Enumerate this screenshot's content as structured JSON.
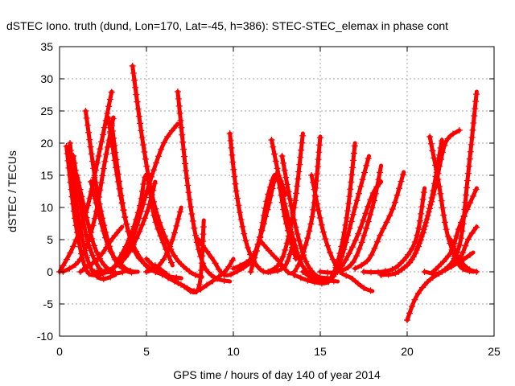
{
  "chart_data": {
    "type": "scatter",
    "title": "dSTEC Iono. truth (dund, Lon=170, Lat=-45, h=386): STEC-STEC_elemax in phase cont",
    "xlabel": "GPS time / hours of day 140 of year 2014",
    "ylabel": "dSTEC  / TECUs",
    "xlim": [
      0,
      25
    ],
    "ylim": [
      -10,
      35
    ],
    "xticks": [
      0,
      5,
      10,
      15,
      20,
      25
    ],
    "yticks": [
      -10,
      -5,
      0,
      5,
      10,
      15,
      20,
      25,
      30,
      35
    ],
    "grid": true,
    "marker": "plus",
    "color": "#ff0000",
    "series": [
      {
        "x": [
          0.4,
          0.9,
          1.5,
          2.2,
          2.8
        ],
        "y": [
          19.5,
          8,
          0.5,
          -0.5,
          0.2
        ]
      },
      {
        "x": [
          0.6,
          1.0,
          1.6,
          2.3,
          3.2
        ],
        "y": [
          20,
          10,
          2,
          -1,
          -0.5
        ]
      },
      {
        "x": [
          0.8,
          1.5,
          2.3,
          3.0
        ],
        "y": [
          18,
          6,
          0.5,
          0
        ]
      },
      {
        "x": [
          1.0,
          2.0,
          3.0,
          4.0
        ],
        "y": [
          15,
          4,
          0,
          0.3
        ]
      },
      {
        "x": [
          0.0,
          0.8,
          1.6,
          2.4,
          3.0
        ],
        "y": [
          0,
          4,
          10,
          20,
          28
        ]
      },
      {
        "x": [
          0.2,
          1.2,
          2.0,
          2.6,
          3.1
        ],
        "y": [
          0,
          2,
          8,
          17,
          24
        ]
      },
      {
        "x": [
          1.5,
          2.2,
          3.0,
          3.8,
          4.5
        ],
        "y": [
          25,
          12,
          3,
          0.2,
          0
        ]
      },
      {
        "x": [
          1.8,
          2.8,
          3.8,
          4.5
        ],
        "y": [
          14,
          4,
          0.5,
          0
        ]
      },
      {
        "x": [
          2.8,
          3.5,
          4.2,
          5.0,
          6.0,
          7.0
        ],
        "y": [
          24,
          12,
          4,
          1,
          -0.5,
          -1
        ]
      },
      {
        "x": [
          3.0,
          3.8,
          4.8,
          6.0,
          7.0
        ],
        "y": [
          23,
          8,
          1.5,
          -0.5,
          -1
        ]
      },
      {
        "x": [
          1.2,
          2.2,
          3.0,
          3.6
        ],
        "y": [
          0,
          2,
          5,
          7
        ]
      },
      {
        "x": [
          4.2,
          4.8,
          5.5,
          6.5,
          7.5,
          8.2
        ],
        "y": [
          32,
          20,
          10,
          3,
          0,
          -0.8
        ]
      },
      {
        "x": [
          3.5,
          4.3,
          5.2,
          6.0,
          6.8
        ],
        "y": [
          1,
          6,
          14,
          20,
          23
        ]
      },
      {
        "x": [
          2.0,
          3.0,
          4.0,
          5.0,
          5.5
        ],
        "y": [
          0,
          0.5,
          3,
          9,
          14
        ]
      },
      {
        "x": [
          3.0,
          4.0,
          4.6,
          5.0,
          5.5,
          6.5
        ],
        "y": [
          0,
          5,
          10,
          15,
          8,
          1
        ]
      },
      {
        "x": [
          5.0,
          5.5,
          6.0,
          6.5,
          7.0
        ],
        "y": [
          0,
          0.5,
          2,
          5,
          10
        ]
      },
      {
        "x": [
          6.8,
          7.3,
          7.8,
          8.3,
          9.0,
          9.8
        ],
        "y": [
          28,
          15,
          6,
          1,
          -1,
          -1.5
        ]
      },
      {
        "x": [
          5.5,
          6.0,
          7.0,
          8.0,
          8.3
        ],
        "y": [
          1,
          0,
          -2,
          -2.5,
          8
        ]
      },
      {
        "x": [
          5.0,
          6.0,
          7.0,
          7.8,
          8.5,
          9.5,
          10.0
        ],
        "y": [
          2,
          -0.5,
          -2,
          -3,
          -2,
          0,
          2
        ]
      },
      {
        "x": [
          8.0,
          8.8,
          9.5,
          10.5,
          11.2
        ],
        "y": [
          5,
          2,
          -0.5,
          0.5,
          2
        ]
      },
      {
        "x": [
          9.8,
          10.2,
          10.8,
          11.5,
          12.2,
          13.0,
          13.5
        ],
        "y": [
          21.5,
          12,
          4,
          0.5,
          0,
          1,
          5
        ]
      },
      {
        "x": [
          10.0,
          11.0,
          11.5,
          12.0,
          12.5,
          13.0
        ],
        "y": [
          0.5,
          2,
          5,
          10,
          15,
          12
        ]
      },
      {
        "x": [
          11.0,
          11.5,
          12.0,
          12.5,
          13.0,
          13.6
        ],
        "y": [
          0,
          5,
          12,
          15,
          8,
          2
        ]
      },
      {
        "x": [
          12.2,
          13.0,
          13.8,
          14.5,
          15.5
        ],
        "y": [
          20.5,
          10,
          2,
          -0.5,
          -1
        ]
      },
      {
        "x": [
          12.8,
          13.5,
          14.2,
          15.0,
          16.0
        ],
        "y": [
          18,
          8,
          1.5,
          -1,
          -1.5
        ]
      },
      {
        "x": [
          12.0,
          12.8,
          13.5,
          14.0
        ],
        "y": [
          0,
          2,
          10,
          21.5
        ]
      },
      {
        "x": [
          11.5,
          12.5,
          13.5,
          14.5,
          15.0
        ],
        "y": [
          5,
          2,
          0,
          8,
          21
        ]
      },
      {
        "x": [
          14.5,
          15.2,
          16.0,
          16.8,
          17.5,
          18.0
        ],
        "y": [
          15,
          6,
          0.5,
          -1,
          -2.5,
          -3
        ]
      },
      {
        "x": [
          14.0,
          15.0,
          15.8,
          16.5,
          17.0
        ],
        "y": [
          0,
          -1.5,
          0,
          8,
          20
        ]
      },
      {
        "x": [
          13.5,
          14.5,
          15.5,
          16.2,
          17.0,
          17.8
        ],
        "y": [
          -0.5,
          -1.5,
          -1.5,
          2,
          10,
          18
        ]
      },
      {
        "x": [
          15.0,
          16.0,
          17.0,
          18.0,
          18.5
        ],
        "y": [
          0,
          0,
          2,
          10,
          16.5
        ]
      },
      {
        "x": [
          16.0,
          16.5,
          17.2,
          18.0,
          18.5
        ],
        "y": [
          0,
          2,
          6,
          12,
          14
        ]
      },
      {
        "x": [
          17.0,
          17.8,
          18.5,
          19.2,
          19.8
        ],
        "y": [
          0.5,
          2,
          6,
          10,
          15.5
        ]
      },
      {
        "x": [
          17.5,
          18.5,
          19.5,
          20.5,
          21.0
        ],
        "y": [
          0,
          0,
          1,
          5,
          13
        ]
      },
      {
        "x": [
          18.5,
          19.5,
          20.5,
          21.3,
          22.0
        ],
        "y": [
          -0.5,
          0,
          3,
          10,
          20.5
        ]
      },
      {
        "x": [
          19.5,
          20.3,
          21.0,
          21.6,
          22.2,
          23.0
        ],
        "y": [
          0,
          2,
          7,
          13,
          20,
          22
        ]
      },
      {
        "x": [
          21.3,
          21.8,
          22.3,
          23.0,
          23.8
        ],
        "y": [
          21,
          14,
          6,
          1,
          0
        ]
      },
      {
        "x": [
          20.0,
          20.5,
          21.2,
          22.0,
          23.0,
          23.8
        ],
        "y": [
          -7.5,
          -4,
          -1.5,
          0,
          1.5,
          3
        ]
      },
      {
        "x": [
          21.0,
          22.0,
          23.0,
          23.5,
          24.0
        ],
        "y": [
          0,
          0,
          4,
          15,
          28
        ]
      },
      {
        "x": [
          21.5,
          22.5,
          23.0,
          23.5,
          24.0
        ],
        "y": [
          0,
          3,
          7,
          10,
          13
        ]
      },
      {
        "x": [
          22.0,
          23.0,
          23.5,
          24.0
        ],
        "y": [
          0,
          2,
          5,
          7
        ]
      },
      {
        "x": [
          22.5,
          23.0,
          23.5,
          24.0
        ],
        "y": [
          5,
          2,
          0.5,
          0
        ]
      }
    ]
  }
}
